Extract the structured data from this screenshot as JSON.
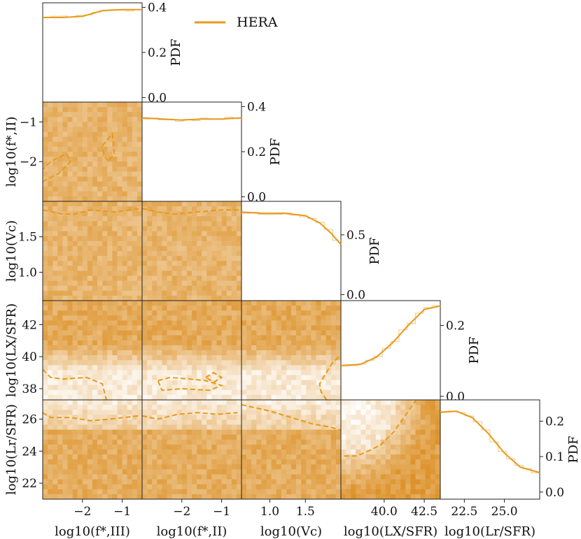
{
  "legend": {
    "label": "HERA",
    "color": "#e69a1c"
  },
  "chart_data": {
    "type": "heatmap",
    "parameters": [
      {
        "key": "fIII",
        "label": "log10(f*,III)",
        "range": [
          -3.0,
          -0.5
        ],
        "ticks": [
          -2,
          -1
        ]
      },
      {
        "key": "fII",
        "label": "log10(f*,II)",
        "range": [
          -3.0,
          -0.5
        ],
        "ticks": [
          -2,
          -1
        ]
      },
      {
        "key": "Vc",
        "label": "log10(Vc)",
        "range": [
          0.6,
          2.0
        ],
        "ticks": [
          1.0,
          1.5
        ]
      },
      {
        "key": "LX",
        "label": "log10(LX/SFR)",
        "range": [
          37.3,
          43.5
        ],
        "ticks": [
          38,
          40,
          42
        ],
        "xticks": [
          40.0,
          42.5
        ]
      },
      {
        "key": "Lr",
        "label": "log10(Lr/SFR)",
        "range": [
          21.0,
          27.2
        ],
        "ticks": [
          22,
          24,
          26
        ],
        "xticks": [
          22.5,
          25.0
        ]
      }
    ],
    "pdf_label": "PDF",
    "diagonal": [
      {
        "param": "fIII",
        "yticks": [
          0.0,
          0.2,
          0.4
        ],
        "ylim": [
          -0.02,
          0.42
        ],
        "x": [
          -3.0,
          -2.5,
          -2.0,
          -1.5,
          -1.0,
          -0.5
        ],
        "y": [
          0.355,
          0.355,
          0.36,
          0.385,
          0.39,
          0.39
        ]
      },
      {
        "param": "fII",
        "yticks": [
          0.0,
          0.2,
          0.4
        ],
        "ylim": [
          -0.02,
          0.42
        ],
        "x": [
          -3.0,
          -2.5,
          -2.0,
          -1.5,
          -1.0,
          -0.5
        ],
        "y": [
          0.35,
          0.345,
          0.34,
          0.345,
          0.345,
          0.35
        ]
      },
      {
        "param": "Vc",
        "yticks": [
          0.0,
          0.5
        ],
        "ylim": [
          -0.05,
          0.78
        ],
        "x": [
          0.6,
          0.9,
          1.2,
          1.5,
          1.7,
          1.85,
          2.0
        ],
        "y": [
          0.69,
          0.68,
          0.68,
          0.66,
          0.6,
          0.52,
          0.42
        ]
      },
      {
        "param": "LX",
        "yticks": [
          0.0,
          0.2
        ],
        "ylim": [
          -0.01,
          0.27
        ],
        "x": [
          37.3,
          38.5,
          39.5,
          40.5,
          41.5,
          42.5,
          43.5
        ],
        "y": [
          0.087,
          0.09,
          0.11,
          0.15,
          0.2,
          0.245,
          0.255
        ]
      },
      {
        "param": "Lr",
        "yticks": [
          0.0,
          0.1,
          0.2
        ],
        "ylim": [
          -0.02,
          0.26
        ],
        "x": [
          21.0,
          22.0,
          23.0,
          24.0,
          25.0,
          26.0,
          27.2
        ],
        "y": [
          0.225,
          0.228,
          0.21,
          0.165,
          0.11,
          0.07,
          0.055
        ]
      }
    ],
    "panels": [
      {
        "x": "fIII",
        "y": "fII",
        "contours": [
          {
            "x": [
              -3.0,
              -2.6,
              -2.3,
              -2.4,
              -2.8,
              -3.0
            ],
            "y": [
              -2.5,
              -2.3,
              -2.0,
              -1.8,
              -2.0,
              -2.2
            ]
          },
          {
            "x": [
              -1.5,
              -1.25,
              -1.2,
              -1.35,
              -1.45,
              -1.5
            ],
            "y": [
              -1.6,
              -1.3,
              -1.8,
              -2.0,
              -1.85,
              -1.6
            ]
          }
        ]
      },
      {
        "x": "fIII",
        "y": "Vc",
        "contours": [
          {
            "x": [
              -3.0,
              -2.5,
              -2.2,
              -1.8,
              -1.2,
              -0.5
            ],
            "y": [
              1.88,
              1.82,
              1.82,
              1.88,
              1.85,
              1.9
            ]
          }
        ]
      },
      {
        "x": "fII",
        "y": "Vc",
        "contours": [
          {
            "x": [
              -3.0,
              -2.6,
              -2.2,
              -1.6,
              -1.0,
              -0.5
            ],
            "y": [
              1.9,
              1.85,
              1.82,
              1.85,
              1.88,
              1.88
            ]
          }
        ]
      },
      {
        "x": "fIII",
        "y": "LX",
        "contours": [
          {
            "x": [
              -3.0,
              -2.8,
              -2.5,
              -1.9,
              -1.5,
              -1.4
            ],
            "y": [
              39.2,
              38.7,
              38.6,
              38.7,
              38.3,
              37.3
            ]
          }
        ]
      },
      {
        "x": "fII",
        "y": "LX",
        "contours": [
          {
            "x": [
              -2.6,
              -2.3,
              -1.8,
              -1.4,
              -1.0,
              -1.3,
              -2.0,
              -2.5,
              -2.6
            ],
            "y": [
              38.5,
              38.7,
              38.6,
              38.5,
              38.2,
              37.9,
              38.0,
              37.9,
              38.5
            ]
          },
          {
            "x": [
              -1.4,
              -1.2,
              -1.0,
              -1.2,
              -1.4
            ],
            "y": [
              38.7,
              39.0,
              38.7,
              38.4,
              38.7
            ]
          }
        ]
      },
      {
        "x": "Vc",
        "y": "LX",
        "contours": [
          {
            "x": [
              1.8,
              1.72,
              1.7,
              1.78,
              1.88,
              2.0
            ],
            "y": [
              37.3,
              37.8,
              38.3,
              38.9,
              39.6,
              40.1
            ]
          }
        ]
      },
      {
        "x": "fIII",
        "y": "Lr",
        "contours": [
          {
            "x": [
              -3.0,
              -2.8,
              -2.3,
              -1.8,
              -1.3,
              -0.6
            ],
            "y": [
              26.4,
              26.1,
              26.1,
              25.9,
              26.0,
              26.2
            ]
          }
        ]
      },
      {
        "x": "fII",
        "y": "Lr",
        "contours": [
          {
            "x": [
              -3.0,
              -2.6,
              -2.1,
              -1.6,
              -1.1,
              -0.6
            ],
            "y": [
              26.2,
              26.0,
              26.3,
              26.4,
              26.3,
              26.4
            ]
          }
        ]
      },
      {
        "x": "Vc",
        "y": "Lr",
        "contours": [
          {
            "x": [
              0.6,
              1.0,
              1.3,
              1.6,
              1.85,
              2.0
            ],
            "y": [
              26.9,
              26.5,
              26.1,
              25.7,
              25.5,
              25.3
            ]
          }
        ]
      },
      {
        "x": "LX",
        "y": "Lr",
        "contours": [
          {
            "x": [
              37.5,
              38.3,
              39.0,
              39.8,
              40.6,
              41.3,
              42.0
            ],
            "y": [
              23.7,
              23.7,
              24.0,
              24.4,
              25.2,
              26.2,
              27.2
            ]
          }
        ]
      }
    ]
  }
}
